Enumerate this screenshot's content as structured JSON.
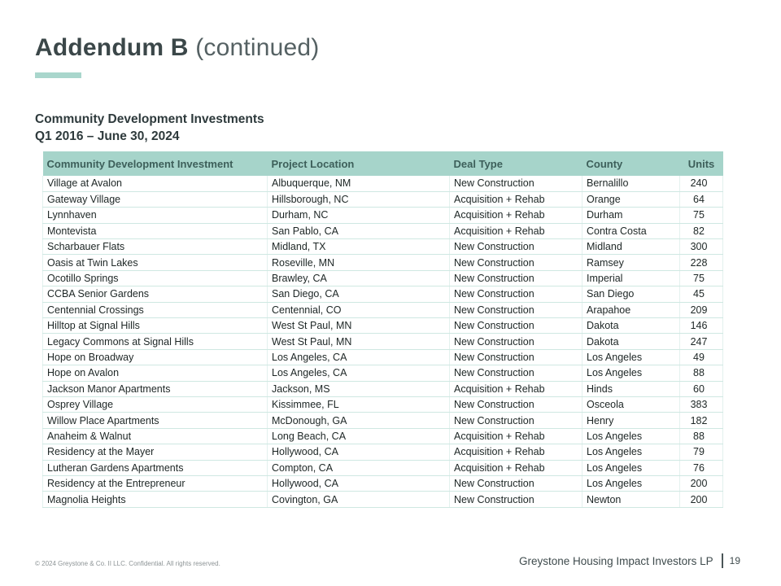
{
  "slide": {
    "title_main": "Addendum B",
    "title_suffix": " (continued)",
    "subtitle_line1": "Community Development Investments",
    "subtitle_line2": "Q1 2016 – June 30, 2024"
  },
  "table": {
    "columns": [
      "Community Development Investment",
      "Project Location",
      "Deal Type",
      "County",
      "Units"
    ],
    "rows": [
      [
        "Village at Avalon",
        "Albuquerque, NM",
        "New Construction",
        "Bernalillo",
        "240"
      ],
      [
        "Gateway Village",
        "Hillsborough, NC",
        "Acquisition + Rehab",
        "Orange",
        "64"
      ],
      [
        "Lynnhaven",
        "Durham, NC",
        "Acquisition + Rehab",
        "Durham",
        "75"
      ],
      [
        "Montevista",
        "San Pablo, CA",
        "Acquisition + Rehab",
        "Contra Costa",
        "82"
      ],
      [
        "Scharbauer Flats",
        "Midland, TX",
        "New Construction",
        "Midland",
        "300"
      ],
      [
        "Oasis at Twin Lakes",
        "Roseville, MN",
        "New Construction",
        "Ramsey",
        "228"
      ],
      [
        "Ocotillo Springs",
        "Brawley, CA",
        "New Construction",
        "Imperial",
        "75"
      ],
      [
        "CCBA Senior Gardens",
        "San Diego, CA",
        "New Construction",
        "San Diego",
        "45"
      ],
      [
        "Centennial Crossings",
        "Centennial, CO",
        "New Construction",
        "Arapahoe",
        "209"
      ],
      [
        "Hilltop at Signal Hills",
        "West St Paul, MN",
        "New Construction",
        "Dakota",
        "146"
      ],
      [
        "Legacy Commons at Signal Hills",
        "West St Paul, MN",
        "New Construction",
        "Dakota",
        "247"
      ],
      [
        "Hope on Broadway",
        "Los Angeles, CA",
        "New Construction",
        "Los Angeles",
        "49"
      ],
      [
        "Hope on Avalon",
        "Los Angeles, CA",
        "New Construction",
        "Los Angeles",
        "88"
      ],
      [
        "Jackson Manor Apartments",
        "Jackson, MS",
        "Acquisition + Rehab",
        "Hinds",
        "60"
      ],
      [
        "Osprey Village",
        "Kissimmee, FL",
        "New Construction",
        "Osceola",
        "383"
      ],
      [
        "Willow Place Apartments",
        "McDonough, GA",
        "New Construction",
        "Henry",
        "182"
      ],
      [
        "Anaheim & Walnut",
        "Long Beach, CA",
        "Acquisition + Rehab",
        "Los Angeles",
        "88"
      ],
      [
        "Residency at the Mayer",
        "Hollywood, CA",
        "Acquisition + Rehab",
        "Los Angeles",
        "79"
      ],
      [
        "Lutheran Gardens Apartments",
        "Compton, CA",
        "Acquisition + Rehab",
        "Los Angeles",
        "76"
      ],
      [
        "Residency at the Entrepreneur",
        "Hollywood, CA",
        "New Construction",
        "Los Angeles",
        "200"
      ],
      [
        "Magnolia Heights",
        "Covington, GA",
        "New Construction",
        "Newton",
        "200"
      ]
    ]
  },
  "footer": {
    "copyright": "© 2024 Greystone & Co. II LLC. Confidential. All rights reserved.",
    "company": "Greystone Housing Impact Investors LP",
    "page_number": "19"
  },
  "colors": {
    "accent_teal": "#a9d6cc",
    "table_header_bg": "#a6d4ca",
    "table_header_text": "#3d5f5a",
    "row_divider": "#cfe8e2",
    "body_text": "#1d2625"
  }
}
